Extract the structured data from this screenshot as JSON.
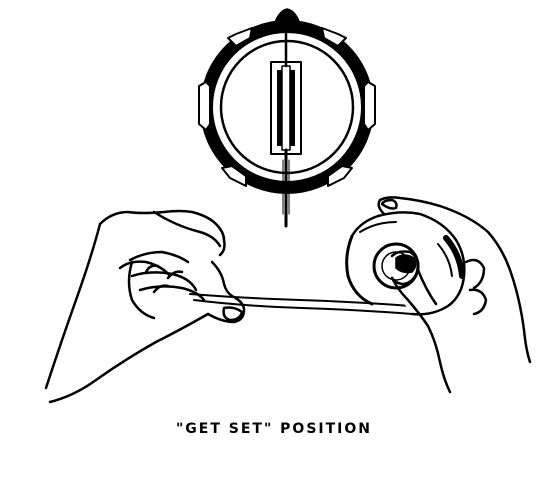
{
  "figure": {
    "caption": "\"GET SET\" POSITION",
    "ink_color": "#000000",
    "paper_color": "#ffffff",
    "components": {
      "compass": "compass-with-sight-wire",
      "left_hand": "left-hand-holding-cover",
      "right_hand": "right-hand-holding-case",
      "thumb_loop": "thumb-loop",
      "lanyard": "lanyard-strap"
    }
  }
}
